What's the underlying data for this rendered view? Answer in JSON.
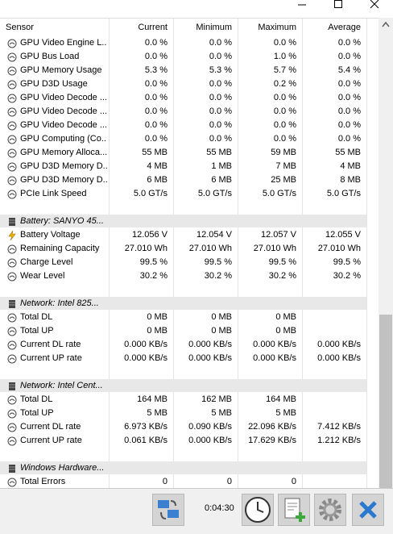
{
  "header": {
    "columns": [
      "Sensor",
      "Current",
      "Minimum",
      "Maximum",
      "Average"
    ]
  },
  "sections": [
    {
      "rows": [
        {
          "label": "GPU Video Engine L...",
          "values": [
            "0.0 %",
            "0.0 %",
            "0.0 %",
            "0.0 %"
          ]
        },
        {
          "label": "GPU Bus Load",
          "values": [
            "0.0 %",
            "0.0 %",
            "1.0 %",
            "0.0 %"
          ]
        },
        {
          "label": "GPU Memory Usage",
          "values": [
            "5.3 %",
            "5.3 %",
            "5.7 %",
            "5.4 %"
          ]
        },
        {
          "label": "GPU D3D Usage",
          "values": [
            "0.0 %",
            "0.0 %",
            "0.2 %",
            "0.0 %"
          ]
        },
        {
          "label": "GPU Video Decode ...",
          "values": [
            "0.0 %",
            "0.0 %",
            "0.0 %",
            "0.0 %"
          ]
        },
        {
          "label": "GPU Video Decode ...",
          "values": [
            "0.0 %",
            "0.0 %",
            "0.0 %",
            "0.0 %"
          ]
        },
        {
          "label": "GPU Video Decode ...",
          "values": [
            "0.0 %",
            "0.0 %",
            "0.0 %",
            "0.0 %"
          ]
        },
        {
          "label": "GPU Computing (Co...",
          "values": [
            "0.0 %",
            "0.0 %",
            "0.0 %",
            "0.0 %"
          ]
        },
        {
          "label": "GPU Memory Alloca...",
          "values": [
            "55 MB",
            "55 MB",
            "59 MB",
            "55 MB"
          ]
        },
        {
          "label": "GPU D3D Memory D...",
          "values": [
            "4 MB",
            "1 MB",
            "7 MB",
            "4 MB"
          ]
        },
        {
          "label": "GPU D3D Memory D...",
          "values": [
            "6 MB",
            "6 MB",
            "25 MB",
            "8 MB"
          ]
        },
        {
          "label": "PCIe Link Speed",
          "values": [
            "5.0 GT/s",
            "5.0 GT/s",
            "5.0 GT/s",
            "5.0 GT/s"
          ]
        }
      ]
    },
    {
      "title": "Battery: SANYO 45...",
      "rows": [
        {
          "label": "Battery Voltage",
          "values": [
            "12.056 V",
            "12.054 V",
            "12.057 V",
            "12.055 V"
          ]
        },
        {
          "label": "Remaining Capacity",
          "values": [
            "27.010 Wh",
            "27.010 Wh",
            "27.010 Wh",
            "27.010 Wh"
          ]
        },
        {
          "label": "Charge Level",
          "values": [
            "99.5 %",
            "99.5 %",
            "99.5 %",
            "99.5 %"
          ]
        },
        {
          "label": "Wear Level",
          "values": [
            "30.2 %",
            "30.2 %",
            "30.2 %",
            "30.2 %"
          ]
        }
      ]
    },
    {
      "title": "Network: Intel 825...",
      "rows": [
        {
          "label": "Total DL",
          "values": [
            "0 MB",
            "0 MB",
            "0 MB",
            null
          ]
        },
        {
          "label": "Total UP",
          "values": [
            "0 MB",
            "0 MB",
            "0 MB",
            null
          ]
        },
        {
          "label": "Current DL rate",
          "values": [
            "0.000 KB/s",
            "0.000 KB/s",
            "0.000 KB/s",
            "0.000 KB/s"
          ]
        },
        {
          "label": "Current UP rate",
          "values": [
            "0.000 KB/s",
            "0.000 KB/s",
            "0.000 KB/s",
            "0.000 KB/s"
          ]
        }
      ]
    },
    {
      "title": "Network: Intel Cent...",
      "rows": [
        {
          "label": "Total DL",
          "values": [
            "164 MB",
            "162 MB",
            "164 MB",
            null
          ]
        },
        {
          "label": "Total UP",
          "values": [
            "5 MB",
            "5 MB",
            "5 MB",
            null
          ]
        },
        {
          "label": "Current DL rate",
          "values": [
            "6.973 KB/s",
            "0.090 KB/s",
            "22.096 KB/s",
            "7.412 KB/s"
          ]
        },
        {
          "label": "Current UP rate",
          "values": [
            "0.061 KB/s",
            "0.000 KB/s",
            "17.629 KB/s",
            "1.212 KB/s"
          ]
        }
      ]
    },
    {
      "title": "Windows Hardware...",
      "rows": [
        {
          "label": "Total Errors",
          "values": [
            "0",
            "0",
            "0",
            null
          ]
        }
      ]
    }
  ],
  "footer": {
    "elapsed": "0:04:30"
  }
}
